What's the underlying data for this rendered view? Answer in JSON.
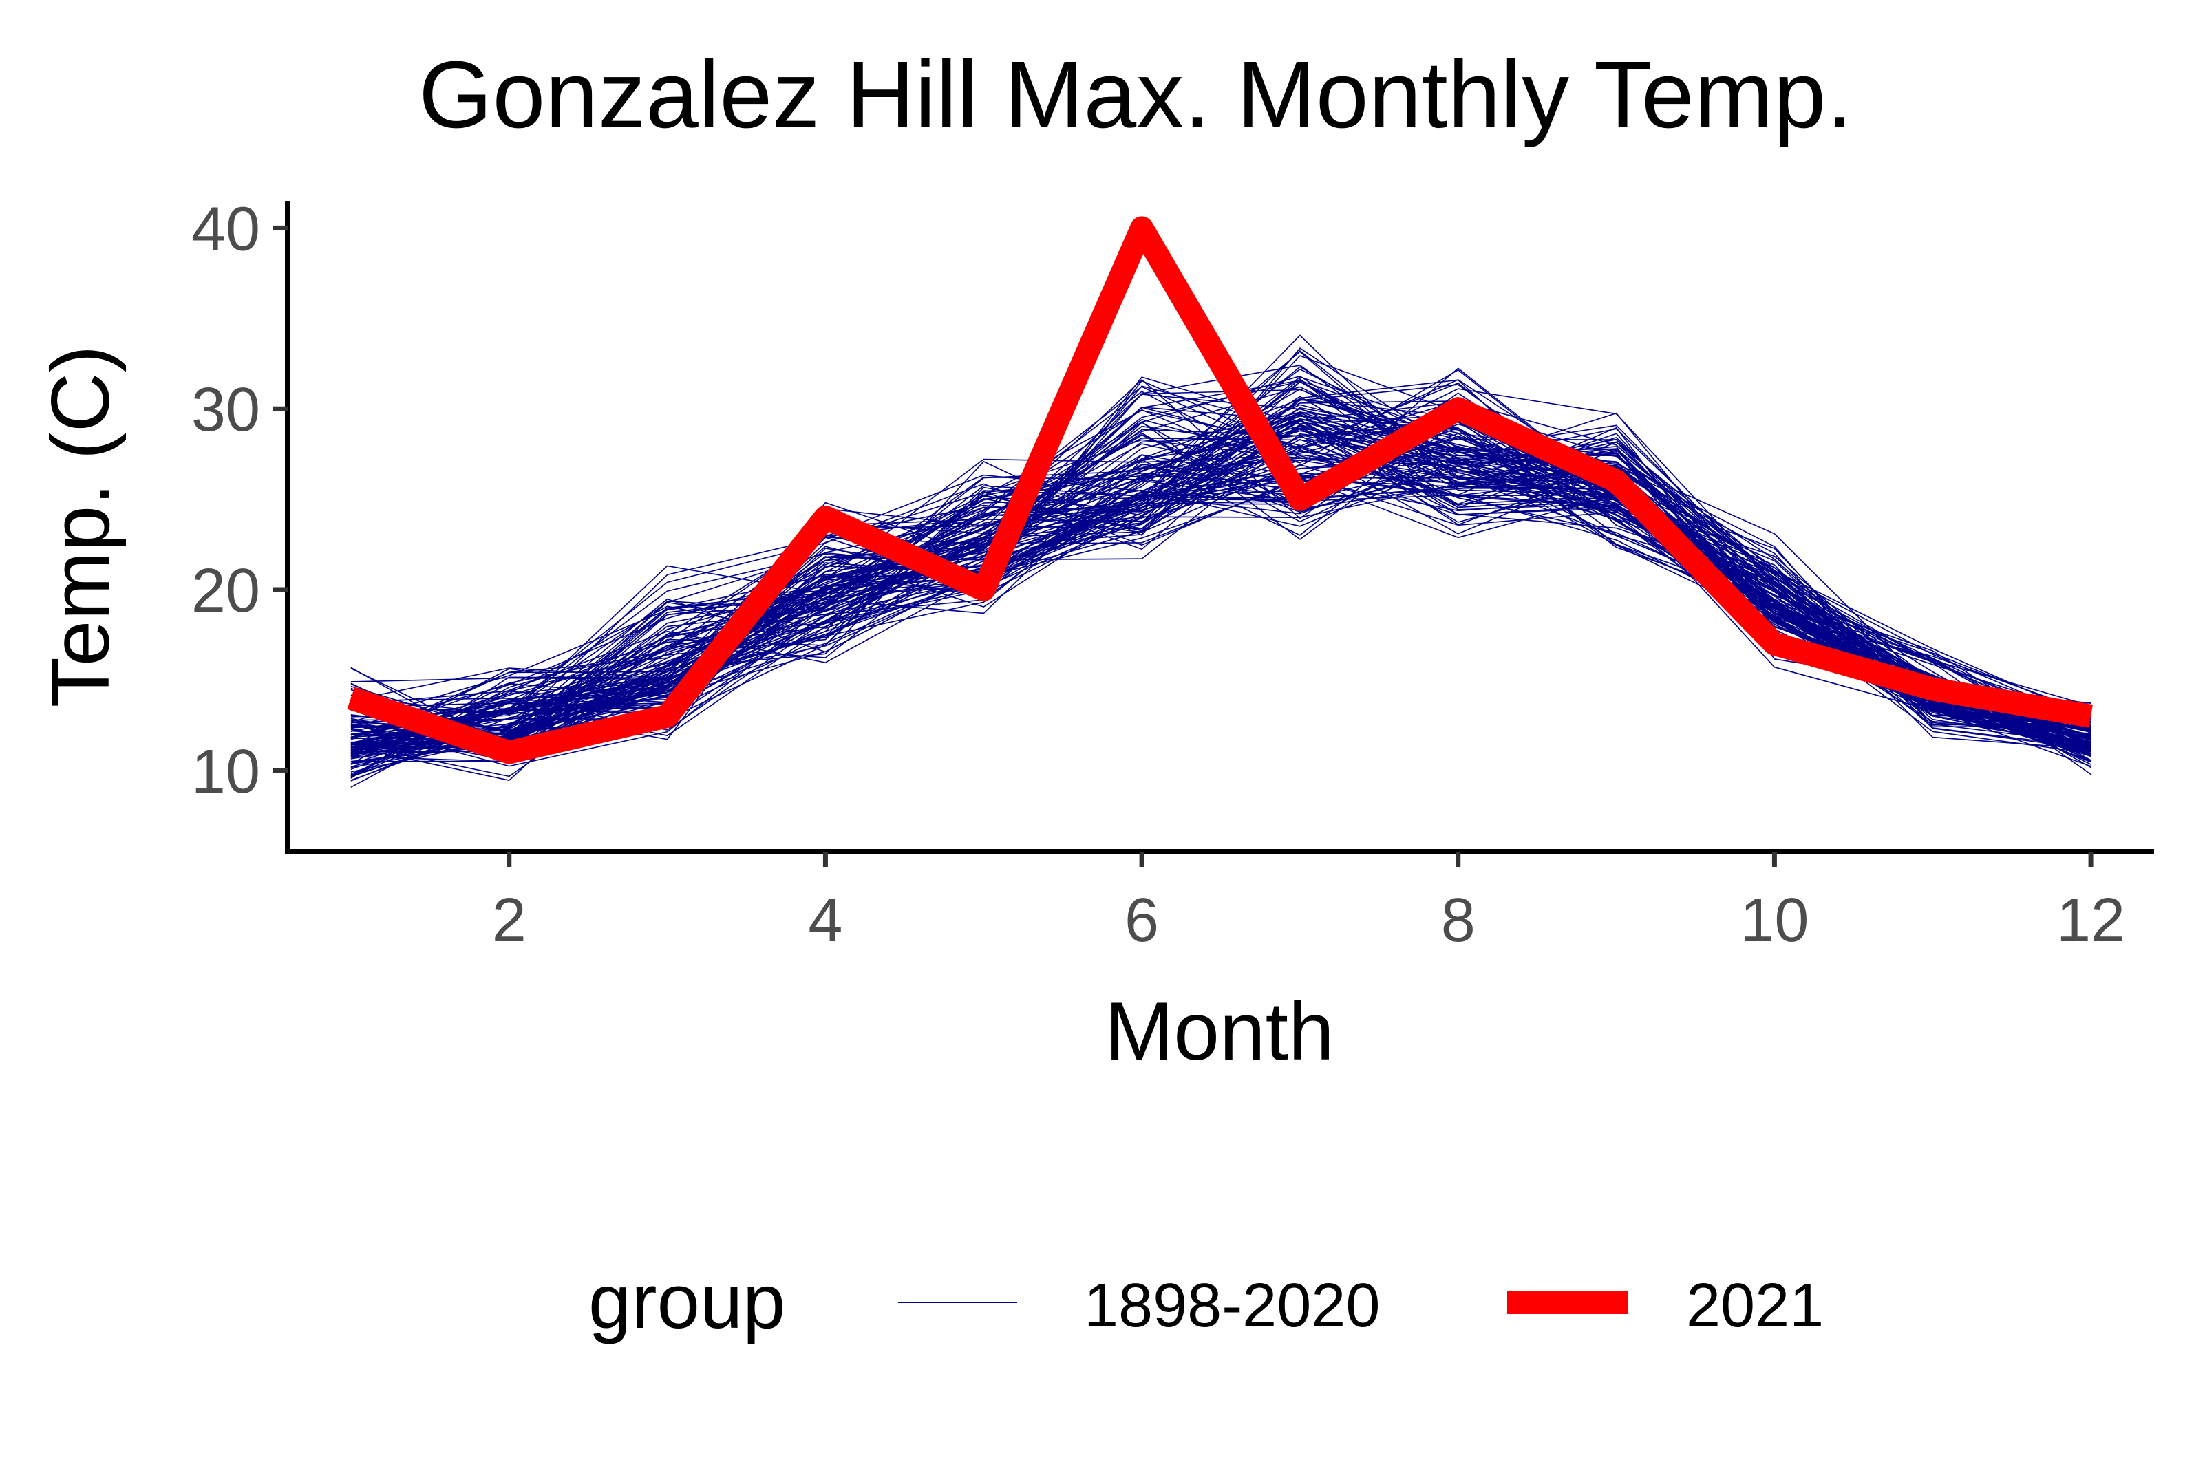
{
  "chart_data": {
    "type": "line",
    "title": "Gonzalez Hill Max. Monthly Temp.",
    "xlabel": "Month",
    "ylabel": "Temp. (C)",
    "x": [
      1,
      2,
      3,
      4,
      5,
      6,
      7,
      8,
      9,
      10,
      11,
      12
    ],
    "xlim": [
      0.6,
      12.4
    ],
    "ylim": [
      5.5,
      41.5
    ],
    "xticks": [
      2,
      4,
      6,
      8,
      10,
      12
    ],
    "yticks": [
      10,
      20,
      30,
      40
    ],
    "grid": false,
    "legend": {
      "title": "group",
      "position": "bottom",
      "entries": [
        "1898-2020",
        "2021"
      ]
    },
    "series": [
      {
        "name": "1898-2020",
        "color": "#00008b",
        "description_of_band": "123 yearly lines",
        "typical_min": [
          8.5,
          9,
          11,
          15,
          17.5,
          21,
          21.5,
          22,
          21,
          15.5,
          11.5,
          9.5
        ],
        "typical_mean": [
          11.5,
          12,
          15.5,
          20,
          22.5,
          25.5,
          28,
          27.5,
          25.5,
          19.5,
          14,
          11.5
        ],
        "typical_max": [
          16.5,
          17,
          22,
          26,
          28.5,
          34,
          35.5,
          33,
          31.5,
          24.5,
          18,
          14.5
        ]
      },
      {
        "name": "2021",
        "color": "#ff0000",
        "values": [
          14,
          11,
          13,
          24,
          20,
          40,
          25,
          30,
          26,
          17,
          14.5,
          13
        ]
      }
    ]
  }
}
